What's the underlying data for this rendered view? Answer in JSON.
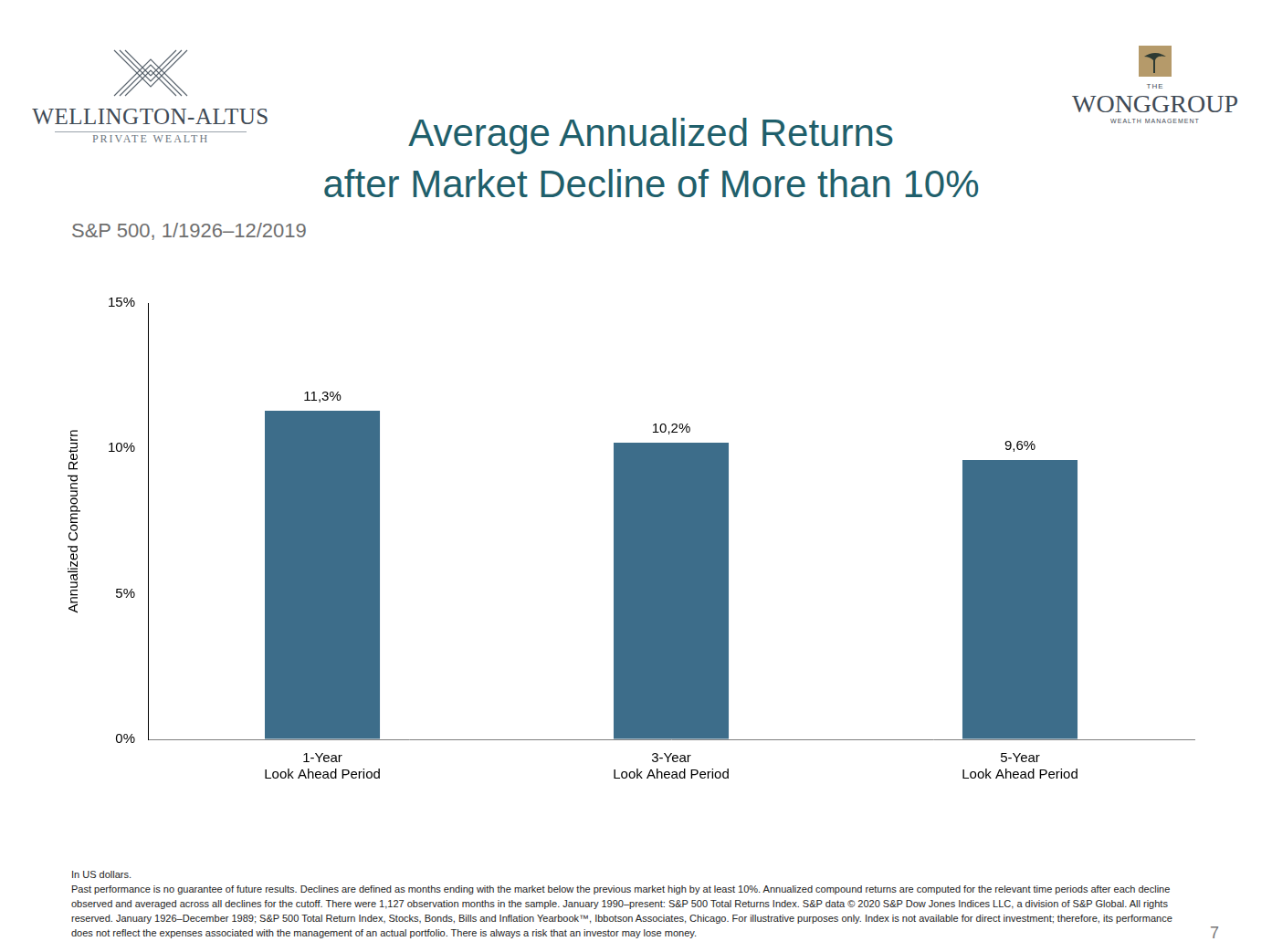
{
  "chart_data": {
    "type": "bar",
    "title": [
      "Average Annualized Returns",
      "after Market Decline of More than 10%"
    ],
    "subtitle": "S&P 500, 1/1926–12/2019",
    "y_label": "Annualized Compound Return",
    "categories": [
      [
        "1-Year",
        "Look Ahead Period"
      ],
      [
        "3-Year",
        "Look Ahead Period"
      ],
      [
        "5-Year",
        "Look Ahead Period"
      ]
    ],
    "values": [
      11.3,
      10.2,
      9.6
    ],
    "value_labels": [
      "11,3%",
      "10,2%",
      "9,6%"
    ],
    "data_labels": true,
    "color": "#3d6d8a",
    "ylim": [
      0,
      15
    ],
    "yticks": [
      {
        "value": 0,
        "label": "0%"
      },
      {
        "value": 5,
        "label": "5%"
      },
      {
        "value": 10,
        "label": "10%"
      },
      {
        "value": 15,
        "label": "15%"
      }
    ],
    "grid": false
  },
  "header": {
    "logo_left": [
      "WELLINGTON-ALTUS",
      "PRIVATE WEALTH"
    ],
    "logo_right": [
      "THE",
      "WONGGROUP",
      "WEALTH MANAGEMENT"
    ]
  },
  "footer": {
    "notes": [
      "In US dollars.",
      "Past performance is no guarantee of future results. Declines are defined as months ending with the market below the previous market high by at least 10%. Annualized compound returns are computed for the relevant time periods after each decline observed and averaged across all declines for the cutoff. There were 1,127 observation months in the sample. January 1990–present: S&P 500 Total Returns Index. S&P data © 2020 S&P Dow Jones Indices LLC, a division of S&P Global. All rights reserved. January 1926–December 1989; S&P 500 Total Return Index, Stocks, Bonds, Bills and Inflation Yearbook™, Ibbotson Associates, Chicago. For illustrative purposes only. Index is not available for direct investment; therefore, its performance does not reflect the expenses associated with the management of an actual portfolio. There is always a risk that an investor may lose money."
    ],
    "page": "7"
  }
}
